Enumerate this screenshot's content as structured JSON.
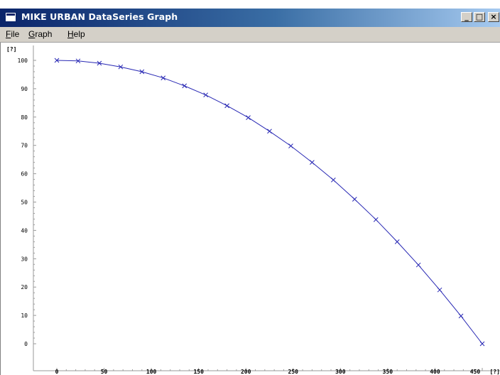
{
  "window": {
    "title": "MIKE URBAN DataSeries Graph",
    "icon": "app-window-icon",
    "controls": {
      "minimize": "_",
      "maximize": "□",
      "close": "×"
    },
    "colors": {
      "titlebar_start": "#0a246a",
      "titlebar_end": "#a6caf0",
      "chrome": "#d4d0c8"
    }
  },
  "menu": {
    "file": {
      "mnemonic": "F",
      "rest": "ile"
    },
    "graph": {
      "mnemonic": "G",
      "rest": "raph"
    },
    "help": {
      "mnemonic": "H",
      "rest": "elp"
    }
  },
  "chart_data": {
    "type": "line",
    "title": "",
    "xlabel": "[?]",
    "ylabel": "[?]",
    "xlim": [
      0,
      450
    ],
    "ylim": [
      0,
      100
    ],
    "x_ticks": [
      "0",
      "50",
      "100",
      "150",
      "200",
      "250",
      "300",
      "350",
      "400",
      "450"
    ],
    "y_ticks": [
      "0",
      "10",
      "20",
      "30",
      "40",
      "50",
      "60",
      "70",
      "80",
      "90",
      "100"
    ],
    "grid": false,
    "legend": "none",
    "marker": "x",
    "line_color": "#2828b4",
    "series": [
      {
        "x": [
          0,
          22.5,
          45,
          67.5,
          90,
          112.5,
          135,
          157.5,
          180,
          202.5,
          225,
          247.5,
          270,
          292.5,
          315,
          337.5,
          360,
          382.5,
          405,
          427.5,
          450
        ],
        "values": [
          100,
          99.8,
          99,
          97.7,
          96,
          93.8,
          91,
          87.8,
          84,
          79.8,
          75,
          69.8,
          64,
          57.8,
          51,
          43.8,
          36,
          27.8,
          19,
          9.8,
          0
        ]
      }
    ]
  }
}
